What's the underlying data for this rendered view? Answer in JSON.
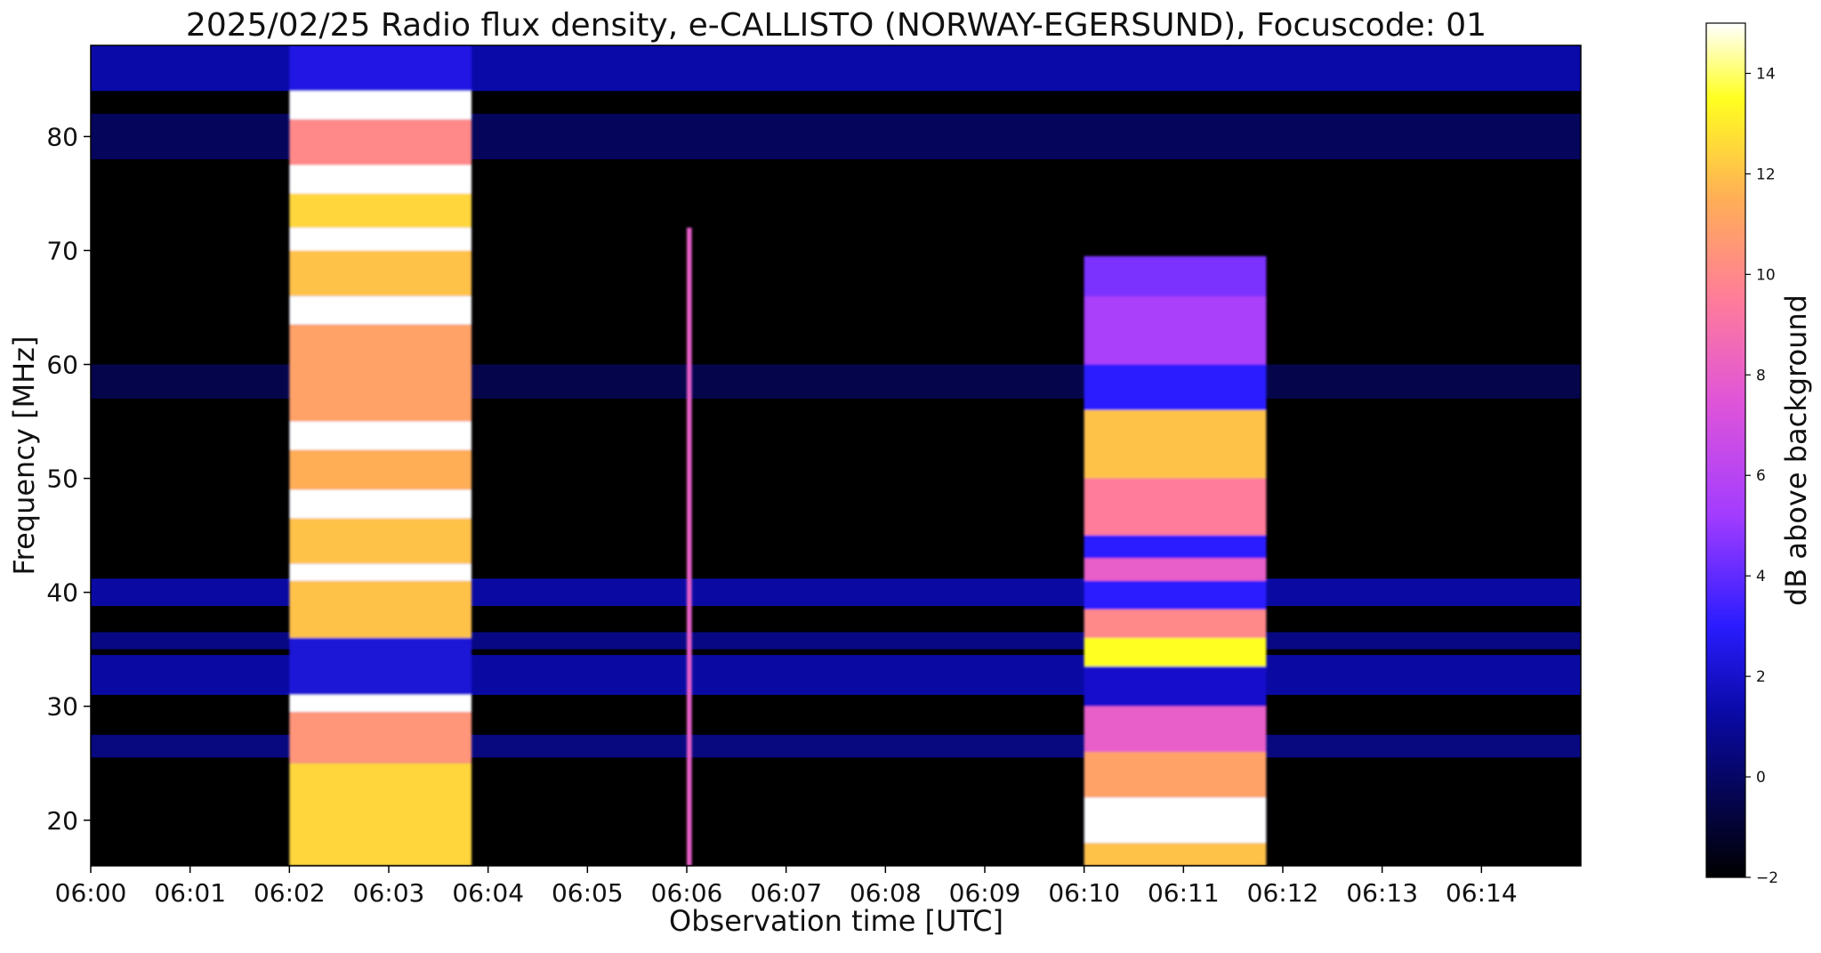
{
  "chart_data": {
    "type": "heatmap",
    "title": "2025/02/25  Radio flux density, e-CALLISTO (NORWAY-EGERSUND), Focuscode: 01",
    "xlabel": "Observation time [UTC]",
    "ylabel": "Frequency [MHz]",
    "colorbar_label": "dB above background",
    "colormap": "gnuplot2",
    "colormap_stops": [
      {
        "value": -2,
        "color": "#000000"
      },
      {
        "value": 1.3,
        "color": "#0a0aa8"
      },
      {
        "value": 3,
        "color": "#2a1cff"
      },
      {
        "value": 5.2,
        "color": "#a23cff"
      },
      {
        "value": 7.5,
        "color": "#e055d8"
      },
      {
        "value": 9.5,
        "color": "#ff7c9a"
      },
      {
        "value": 11.5,
        "color": "#ffae57"
      },
      {
        "value": 13.5,
        "color": "#ffff20"
      },
      {
        "value": 15,
        "color": "#ffffff"
      }
    ],
    "xlim": [
      "06:00",
      "06:15"
    ],
    "ylim": [
      16,
      88
    ],
    "zlim": [
      -2,
      15
    ],
    "x_ticks": [
      "06:00",
      "06:01",
      "06:02",
      "06:03",
      "06:04",
      "06:05",
      "06:06",
      "06:07",
      "06:08",
      "06:09",
      "06:10",
      "06:11",
      "06:12",
      "06:13",
      "06:14"
    ],
    "y_ticks": [
      20,
      30,
      40,
      50,
      60,
      70,
      80
    ],
    "colorbar_ticks": [
      -2,
      0,
      2,
      4,
      6,
      8,
      10,
      12,
      14
    ],
    "grid": false,
    "background_bands": [
      {
        "freq_min": 84,
        "freq_max": 88,
        "level": 1.3
      },
      {
        "freq_min": 38.8,
        "freq_max": 41.2,
        "level": 1.2
      },
      {
        "freq_min": 31,
        "freq_max": 34.5,
        "level": 1.2
      },
      {
        "freq_min": 35,
        "freq_max": 36.5,
        "level": 0.6
      },
      {
        "freq_min": 25.5,
        "freq_max": 27.5,
        "level": 0.5
      },
      {
        "freq_min": 78,
        "freq_max": 82,
        "level": -0.2
      },
      {
        "freq_min": 57,
        "freq_max": 60,
        "level": -0.5
      }
    ],
    "bursts": [
      {
        "time_start": "06:02:00",
        "time_end": "06:03:50",
        "freq_min": 16,
        "freq_max": 88,
        "bands": [
          {
            "freq_min": 84,
            "freq_max": 88,
            "level": 2.5
          },
          {
            "freq_min": 81.5,
            "freq_max": 84,
            "level": 15
          },
          {
            "freq_min": 77.5,
            "freq_max": 81.5,
            "level": 10
          },
          {
            "freq_min": 75,
            "freq_max": 77.5,
            "level": 15
          },
          {
            "freq_min": 72,
            "freq_max": 75,
            "level": 12.5
          },
          {
            "freq_min": 70,
            "freq_max": 72,
            "level": 15
          },
          {
            "freq_min": 66,
            "freq_max": 70,
            "level": 12
          },
          {
            "freq_min": 63.5,
            "freq_max": 66,
            "level": 15
          },
          {
            "freq_min": 55,
            "freq_max": 63.5,
            "level": 11
          },
          {
            "freq_min": 52.5,
            "freq_max": 55,
            "level": 15
          },
          {
            "freq_min": 49,
            "freq_max": 52.5,
            "level": 11.5
          },
          {
            "freq_min": 46.5,
            "freq_max": 49,
            "level": 15
          },
          {
            "freq_min": 42.5,
            "freq_max": 46.5,
            "level": 12
          },
          {
            "freq_min": 41,
            "freq_max": 42.5,
            "level": 15
          },
          {
            "freq_min": 36,
            "freq_max": 41,
            "level": 12
          },
          {
            "freq_min": 31,
            "freq_max": 36,
            "level": 2.2
          },
          {
            "freq_min": 29.5,
            "freq_max": 31,
            "level": 15
          },
          {
            "freq_min": 25,
            "freq_max": 29.5,
            "level": 10.5
          },
          {
            "freq_min": 16,
            "freq_max": 25,
            "level": 12.5
          }
        ]
      },
      {
        "time_start": "06:06:00",
        "time_end": "06:06:03",
        "freq_min": 16,
        "freq_max": 72,
        "bands": [
          {
            "freq_min": 16,
            "freq_max": 72,
            "level": 8
          }
        ]
      },
      {
        "time_start": "06:10:00",
        "time_end": "06:11:50",
        "freq_min": 16,
        "freq_max": 69.5,
        "bands": [
          {
            "freq_min": 66,
            "freq_max": 69.5,
            "level": 4.5
          },
          {
            "freq_min": 60,
            "freq_max": 66,
            "level": 5.5
          },
          {
            "freq_min": 56,
            "freq_max": 60,
            "level": 3
          },
          {
            "freq_min": 50,
            "freq_max": 56,
            "level": 12
          },
          {
            "freq_min": 45,
            "freq_max": 50,
            "level": 9.5
          },
          {
            "freq_min": 43,
            "freq_max": 45,
            "level": 3
          },
          {
            "freq_min": 41,
            "freq_max": 43,
            "level": 8
          },
          {
            "freq_min": 38.5,
            "freq_max": 41,
            "level": 3
          },
          {
            "freq_min": 36,
            "freq_max": 38.5,
            "level": 10
          },
          {
            "freq_min": 33.5,
            "freq_max": 36,
            "level": 13.5
          },
          {
            "freq_min": 30,
            "freq_max": 33.5,
            "level": 2
          },
          {
            "freq_min": 26,
            "freq_max": 30,
            "level": 8
          },
          {
            "freq_min": 22,
            "freq_max": 26,
            "level": 11
          },
          {
            "freq_min": 18,
            "freq_max": 22,
            "level": 15
          },
          {
            "freq_min": 16,
            "freq_max": 18,
            "level": 12
          }
        ]
      }
    ]
  }
}
